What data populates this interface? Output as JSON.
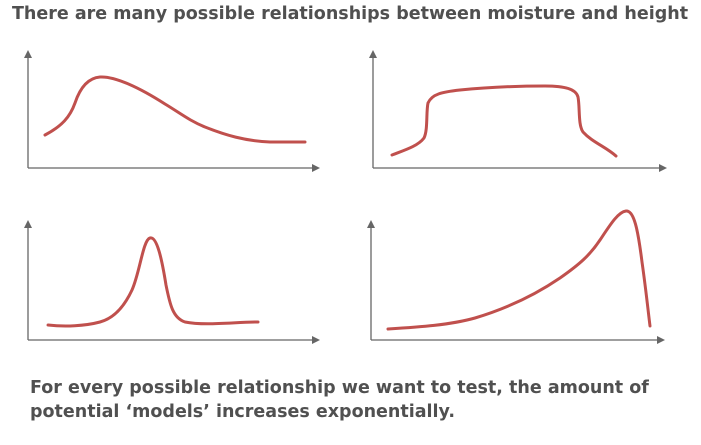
{
  "title": "There are many possible relationships between moisture and height",
  "footer": {
    "line1": "For every possible relationship we want to test, the amount of",
    "line2": "potential ‘models’ increases exponentially."
  },
  "colors": {
    "text": "#505050",
    "axis": "#666666",
    "curve": "#c0504d"
  },
  "diagram": {
    "panels": [
      {
        "name": "skewed-peak-plateau"
      },
      {
        "name": "flat-plateau"
      },
      {
        "name": "sharp-peak"
      },
      {
        "name": "exponential-rise-drop"
      }
    ]
  }
}
